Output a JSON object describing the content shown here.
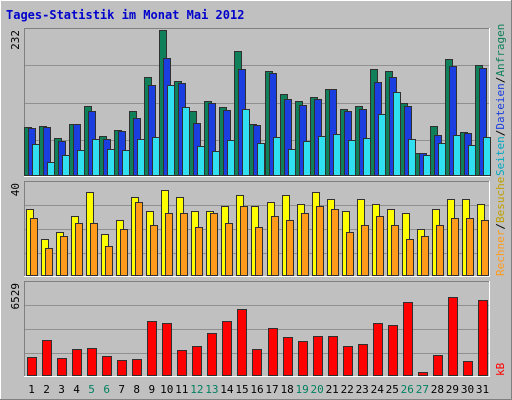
{
  "title": "Tages-Statistik im Monat Mai 2012",
  "colors": {
    "background": "#c0c0c0",
    "border_light": "#ffffff",
    "border_dark": "#808080",
    "title": "#0000cc",
    "anfragen": "#10805a",
    "dateien": "#1a3ee0",
    "seiten": "#30e0f0",
    "besuche": "#ffff00",
    "rechner": "#ff9a1a",
    "kb": "#ff0000",
    "weekday_label": "#000000",
    "weekend_label": "#008060",
    "grid": "#909090"
  },
  "legend": {
    "anfragen": "Anfragen",
    "dateien": "Dateien",
    "seiten": "Seiten",
    "besuche": "Besuche",
    "rechner": "Rechner",
    "kb": "kB",
    "separator": "/"
  },
  "chart_data": {
    "type": "bar",
    "title": "Tages-Statistik im Monat Mai 2012",
    "categories": [
      "1",
      "2",
      "3",
      "4",
      "5",
      "6",
      "7",
      "8",
      "9",
      "10",
      "11",
      "12",
      "13",
      "14",
      "15",
      "16",
      "17",
      "18",
      "19",
      "20",
      "21",
      "22",
      "23",
      "24",
      "25",
      "26",
      "27",
      "28",
      "29",
      "30",
      "31"
    ],
    "weekend_days": [
      "5",
      "6",
      "12",
      "13",
      "19",
      "20",
      "26",
      "27"
    ],
    "panels": [
      {
        "id": "requests",
        "ymax": 232,
        "ymax_label": "232",
        "series": [
          {
            "name": "Anfragen",
            "key": "anfragen",
            "values": [
              78,
              79,
              61,
              82,
              112,
              64,
              73,
              104,
              157,
              232,
              151,
              103,
              119,
              109,
              199,
              83,
              167,
              130,
              119,
              126,
              138,
              107,
              111,
              170,
              167,
              116,
              36,
              80,
              186,
              70,
              176
            ]
          },
          {
            "name": "Dateien",
            "key": "dateien",
            "values": [
              76,
              78,
              55,
              82,
              104,
              58,
              71,
              92,
              144,
              187,
              147,
              84,
              116,
              105,
              170,
              81,
              163,
              123,
              113,
              123,
              138,
              104,
              107,
              150,
              158,
              112,
              36,
              65,
              175,
              68,
              172
            ]
          },
          {
            "name": "Seiten",
            "key": "seiten",
            "values": [
              51,
              22,
              33,
              41,
              58,
              43,
              41,
              58,
              62,
              145,
              110,
              48,
              40,
              57,
              106,
              53,
              62,
              43,
              56,
              64,
              66,
              57,
              60,
              99,
              133,
              59,
              34,
              53,
              65,
              50,
              62
            ]
          }
        ]
      },
      {
        "id": "visits",
        "ymax": 40,
        "ymax_label": "40",
        "series": [
          {
            "name": "Besuche",
            "key": "besuche",
            "values": [
              29,
              16,
              19,
              26,
              36,
              18,
              24,
              34,
              28,
              37,
              34,
              28,
              28,
              30,
              35,
              30,
              32,
              35,
              31,
              36,
              33,
              28,
              33,
              31,
              29,
              27,
              20,
              29,
              33,
              33,
              31
            ]
          },
          {
            "name": "Rechner",
            "key": "rechner",
            "values": [
              25,
              12,
              17,
              23,
              23,
              13,
              20,
              32,
              22,
              27,
              27,
              21,
              27,
              23,
              30,
              21,
              26,
              24,
              27,
              30,
              29,
              19,
              22,
              26,
              22,
              16,
              17,
              22,
              25,
              25,
              24
            ]
          }
        ]
      },
      {
        "id": "kb",
        "ymax": 6529,
        "ymax_label": "6529",
        "series": [
          {
            "name": "kB",
            "key": "kb",
            "values": [
              1310,
              2500,
              1240,
              1910,
              1960,
              1370,
              1130,
              1190,
              3890,
              3720,
              1840,
              2130,
              3050,
              3890,
              4700,
              1890,
              3380,
              2730,
              2470,
              2800,
              2800,
              2110,
              2220,
              3720,
              3580,
              5180,
              260,
              1460,
              5580,
              1060,
              5330
            ]
          }
        ]
      }
    ]
  }
}
